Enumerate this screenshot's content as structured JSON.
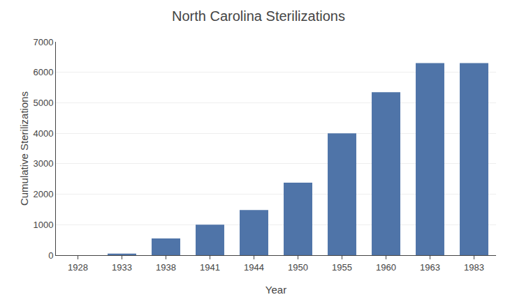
{
  "chart_data": {
    "type": "bar",
    "title": "North Carolina Sterilizations",
    "xlabel": "Year",
    "ylabel": "Cumulative Sterilizations",
    "categories": [
      "1928",
      "1933",
      "1938",
      "1941",
      "1944",
      "1950",
      "1955",
      "1960",
      "1963",
      "1983"
    ],
    "values": [
      0,
      50,
      550,
      1000,
      1480,
      2380,
      4000,
      5350,
      6300,
      6300
    ],
    "color": "#4f74a8",
    "ylim": [
      0,
      7000
    ],
    "yticks": [
      0,
      1000,
      2000,
      3000,
      4000,
      5000,
      6000,
      7000
    ],
    "grid": true
  }
}
